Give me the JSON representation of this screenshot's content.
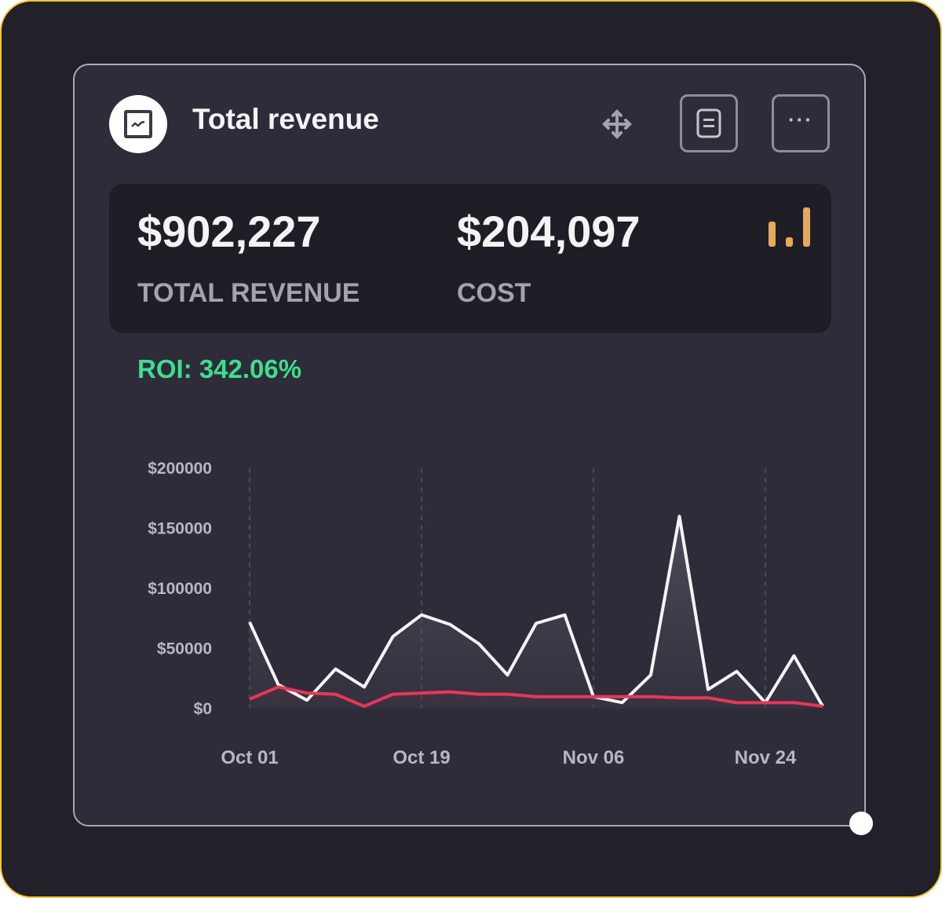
{
  "widget": {
    "title": "Total revenue",
    "icons": {
      "header": "chart-line-icon",
      "move": "move-icon",
      "details": "document-icon",
      "more": "more-horizontal-icon",
      "stats": "bar-chart-icon"
    },
    "more_label": "···"
  },
  "stats": {
    "revenue_value": "$902,227",
    "revenue_label": "TOTAL REVENUE",
    "cost_value": "$204,097",
    "cost_label": "COST"
  },
  "roi": "ROI: 342.06%",
  "colors": {
    "frame_border": "#f2c531",
    "revenue_line": "#f4f4f6",
    "cost_line": "#e8365a",
    "roi_text": "#3fdd8f",
    "stats_icon": "#e8a85a"
  },
  "chart_data": {
    "type": "line",
    "title": "",
    "xlabel": "",
    "ylabel": "",
    "ylim": [
      0,
      200000
    ],
    "y_ticks": [
      "$200000",
      "$150000",
      "$100000",
      "$50000",
      "$0"
    ],
    "y_tick_values": [
      200000,
      150000,
      100000,
      50000,
      0
    ],
    "x_tick_labels": [
      "Oct 01",
      "Oct 19",
      "Nov 06",
      "Nov 24"
    ],
    "x_tick_indices": [
      0,
      6,
      12,
      18
    ],
    "x": [
      "Oct 01",
      "Oct 04",
      "Oct 07",
      "Oct 10",
      "Oct 13",
      "Oct 16",
      "Oct 19",
      "Oct 22",
      "Oct 25",
      "Oct 28",
      "Oct 31",
      "Nov 03",
      "Nov 06",
      "Nov 09",
      "Nov 12",
      "Nov 15",
      "Nov 18",
      "Nov 21",
      "Nov 24",
      "Nov 27",
      "Nov 30"
    ],
    "grid": "vertical-dashed",
    "legend": "none",
    "series": [
      {
        "name": "Revenue",
        "values": [
          72000,
          20000,
          7000,
          33000,
          18000,
          60000,
          78000,
          70000,
          54000,
          28000,
          71000,
          78000,
          10000,
          5000,
          28000,
          160000,
          16000,
          31000,
          5000,
          44000,
          2000
        ]
      },
      {
        "name": "Cost",
        "values": [
          8000,
          18000,
          13000,
          12000,
          2000,
          12000,
          13000,
          14000,
          12000,
          12000,
          10000,
          10000,
          10000,
          10000,
          10000,
          9000,
          9000,
          5000,
          5000,
          5000,
          2000
        ]
      }
    ]
  }
}
